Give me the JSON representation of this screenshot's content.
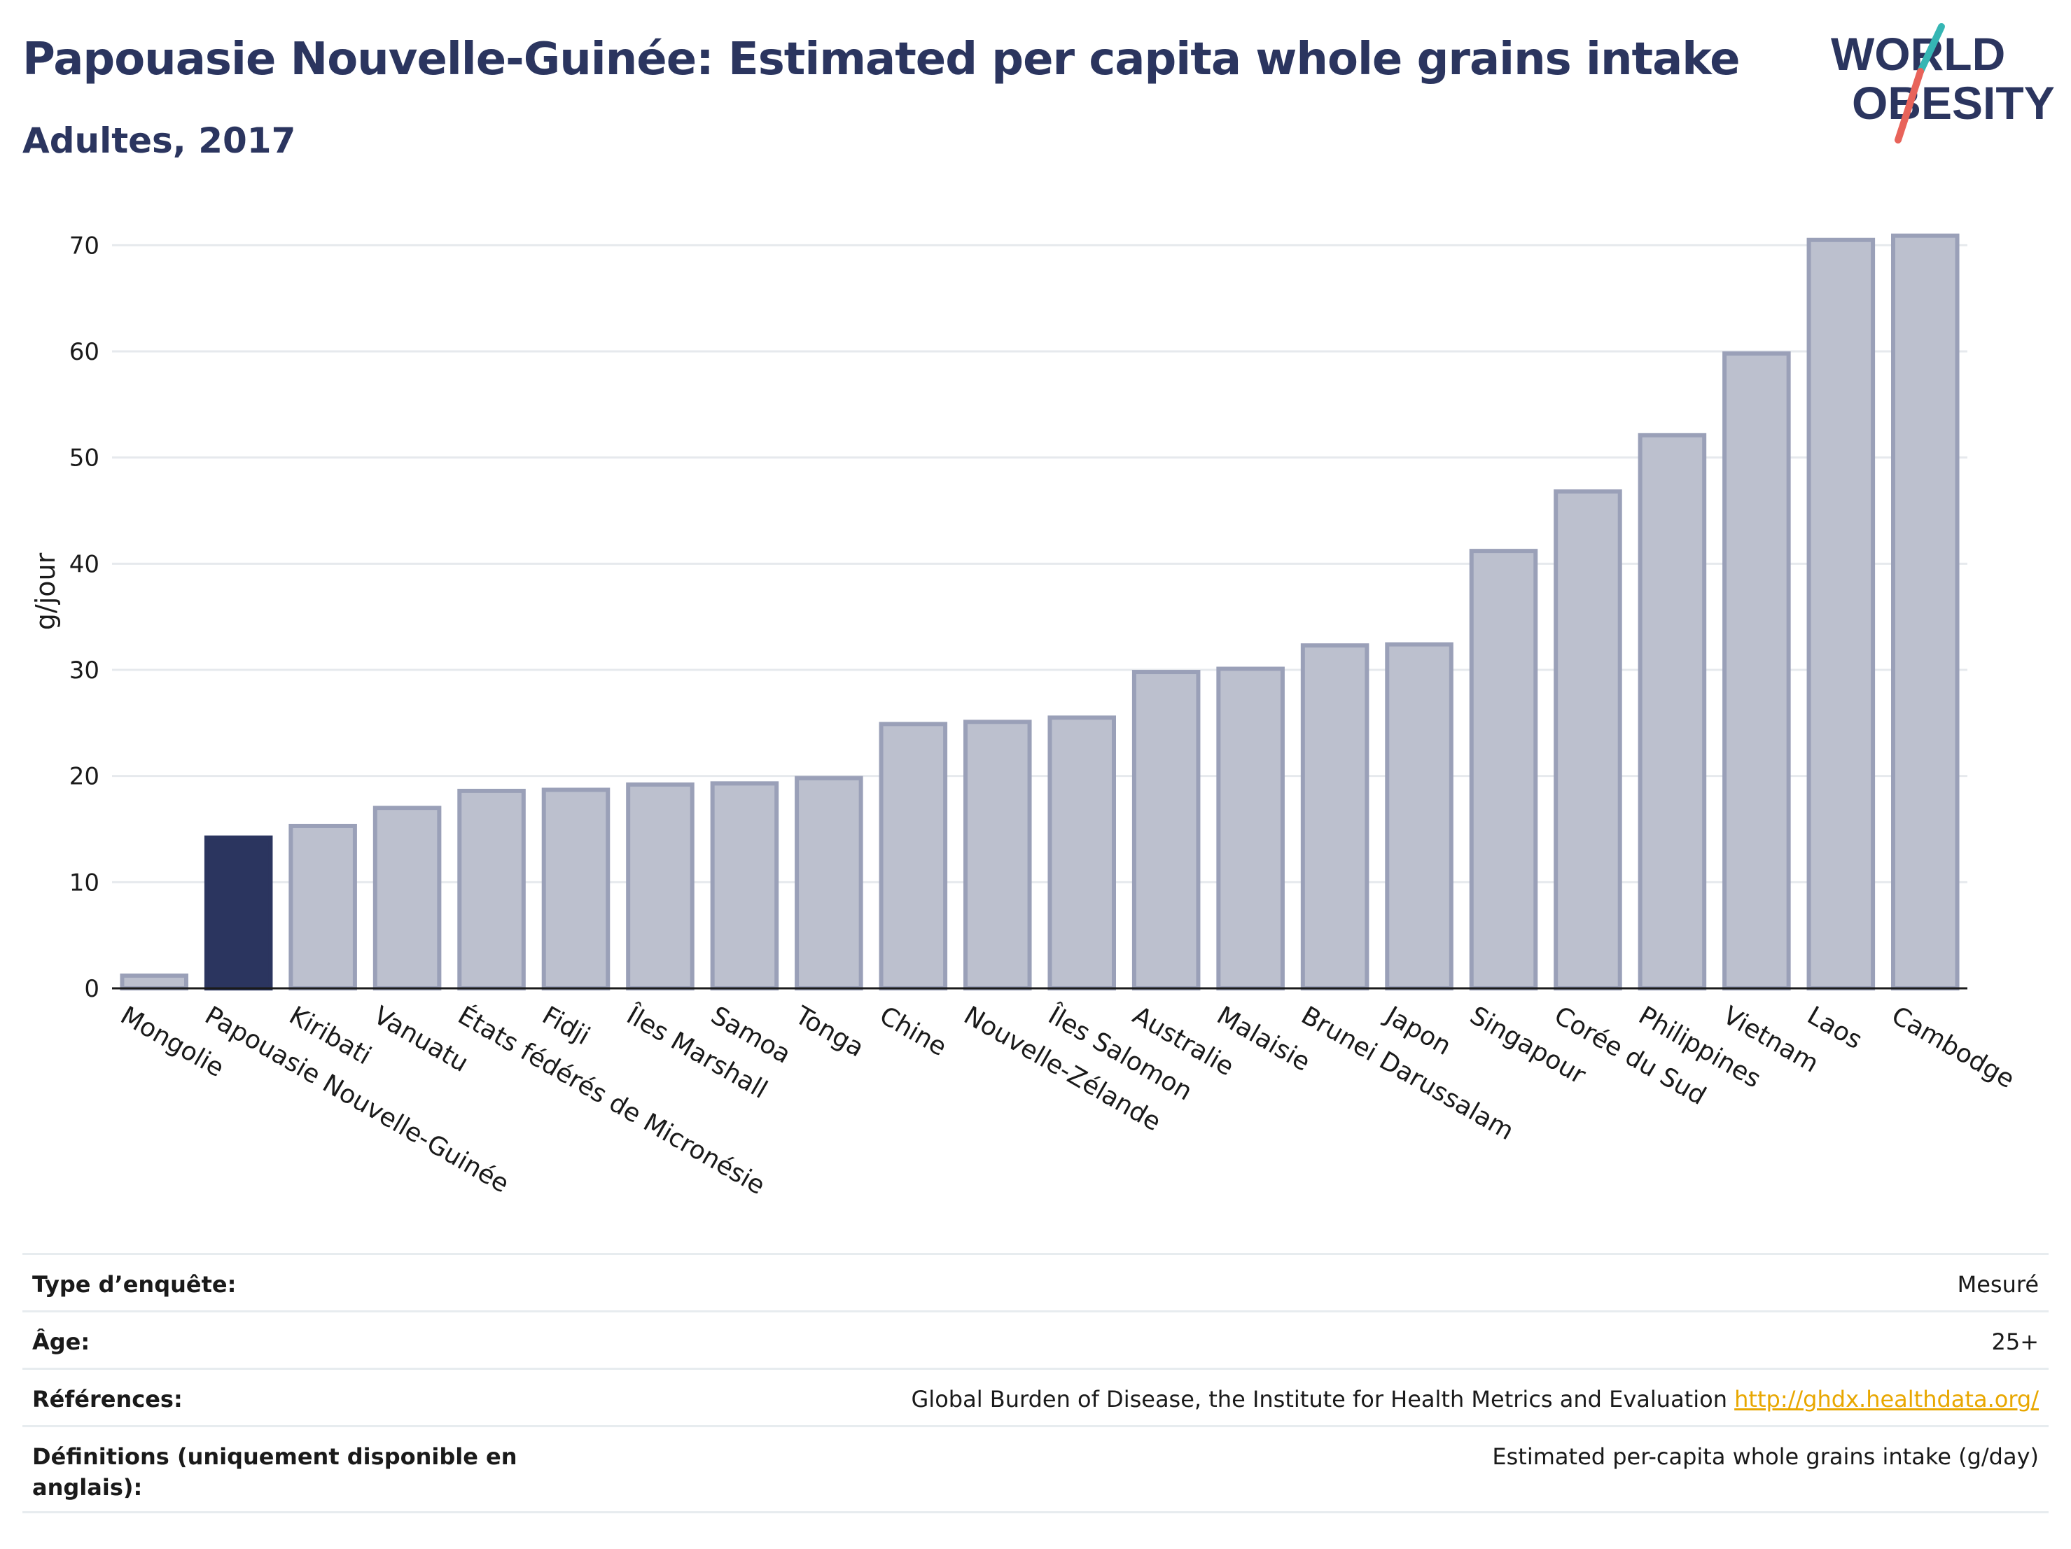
{
  "title": "Papouasie Nouvelle-Guinée: Estimated per capita whole grains intake",
  "subtitle": "Adultes, 2017",
  "logo": {
    "line1": "WORLD",
    "line2": "OBESITY"
  },
  "colors": {
    "highlight": "#2b355f",
    "bar": "#bcc0ce",
    "bar_border": "#9aa0b8",
    "accent_teal": "#35b6b4",
    "accent_red": "#e8635a"
  },
  "chart_data": {
    "type": "bar",
    "ylabel": "g/jour",
    "ylim": [
      0,
      72
    ],
    "yticks": [
      0,
      10,
      20,
      30,
      40,
      50,
      60,
      70
    ],
    "grid": true,
    "highlight_category": "Papouasie Nouvelle-Guinée",
    "categories": [
      "Mongolie",
      "Papouasie Nouvelle-Guinée",
      "Kiribati",
      "Vanuatu",
      "États fédérés de Micronésie",
      "Fidji",
      "Îles Marshall",
      "Samoa",
      "Tonga",
      "Chine",
      "Nouvelle-Zélande",
      "Îles Salomon",
      "Australie",
      "Malaisie",
      "Brunei Darussalam",
      "Japon",
      "Singapour",
      "Corée du Sud",
      "Philippines",
      "Vietnam",
      "Laos",
      "Cambodge"
    ],
    "values": [
      1.2,
      14.2,
      15.3,
      17.0,
      18.6,
      18.7,
      19.2,
      19.3,
      19.8,
      24.9,
      25.1,
      25.5,
      29.8,
      30.1,
      32.3,
      32.4,
      41.2,
      46.8,
      52.1,
      59.8,
      70.5,
      70.9
    ]
  },
  "info": {
    "rows": [
      {
        "key": "Type d’enquête:",
        "value": "Mesuré"
      },
      {
        "key": "Âge:",
        "value": "25+"
      },
      {
        "key": "Références:",
        "value": "Global Burden of Disease, the Institute for Health Metrics and Evaluation",
        "link": "http://ghdx.healthdata.org/"
      },
      {
        "key": "Définitions (uniquement disponible en anglais):",
        "value": "Estimated per-capita whole grains intake (g/day)"
      }
    ]
  }
}
